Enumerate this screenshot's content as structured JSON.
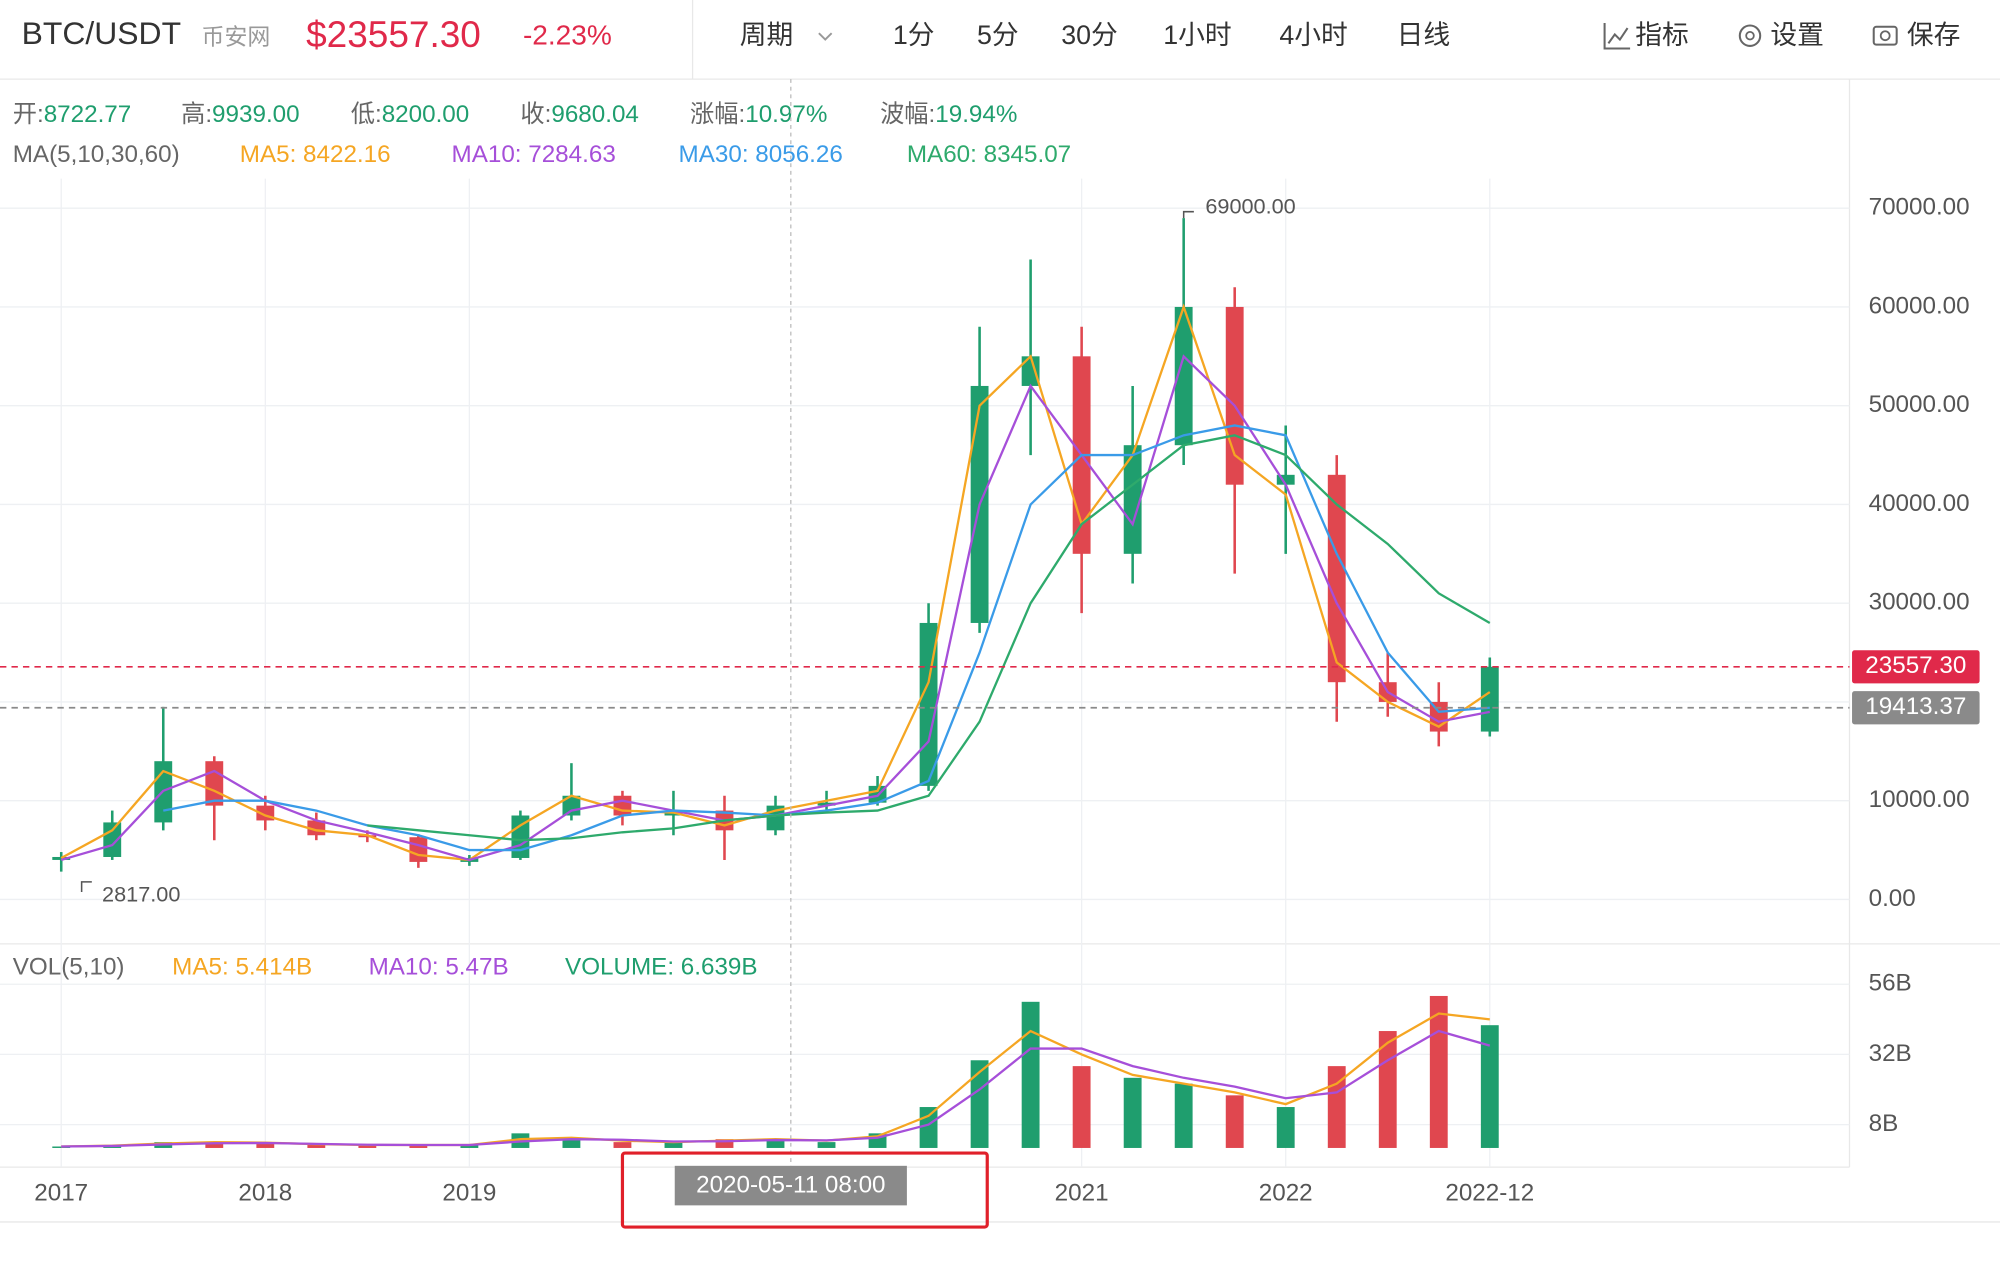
{
  "header": {
    "pair": "BTC/USDT",
    "source": "币安网",
    "price": "$23557.30",
    "change": "-2.23%",
    "period": "周期",
    "intervals": [
      "1分",
      "5分",
      "30分",
      "1小时",
      "4小时",
      "日线"
    ],
    "tools": [
      "指标",
      "设置",
      "保存"
    ]
  },
  "info": [
    {
      "label": "开:",
      "value": "8722.77"
    },
    {
      "label": "高:",
      "value": "9939.00"
    },
    {
      "label": "低:",
      "value": "8200.00"
    },
    {
      "label": "收:",
      "value": "9680.04"
    },
    {
      "label": "涨幅:",
      "value": "10.97%"
    },
    {
      "label": "波幅:",
      "value": "19.94%"
    }
  ],
  "crosshair_label": "2020-05-11 08:00",
  "chart_data": [
    {
      "type": "candlestick",
      "indicator_label": "MA(5,10,30,60)",
      "up_color": "#1f9e6e",
      "down_color": "#e0474f",
      "categories": [
        null,
        null,
        null,
        null,
        null,
        null,
        null,
        null,
        null,
        null,
        null,
        null,
        null,
        null,
        null,
        null,
        null,
        null,
        null,
        null,
        null,
        null,
        null,
        null,
        null,
        null,
        null,
        null,
        null
      ],
      "open": [
        4000,
        4300,
        7800,
        14000,
        9500,
        8000,
        6500,
        6300,
        3800,
        4200,
        8500,
        10500,
        8500,
        9000,
        7000,
        9500,
        9800,
        11500,
        28000,
        52000,
        55000,
        35000,
        46000,
        60000,
        42000,
        43000,
        22000,
        20000,
        17000
      ],
      "high": [
        4800,
        9000,
        19500,
        14500,
        10500,
        8800,
        7000,
        6600,
        4500,
        9000,
        13800,
        11000,
        11000,
        10500,
        10500,
        11000,
        12500,
        30000,
        58000,
        64800,
        58000,
        52000,
        69000,
        62000,
        48000,
        45000,
        25000,
        22000,
        24500
      ],
      "low": [
        2817,
        4000,
        7000,
        6000,
        7000,
        6000,
        5800,
        3200,
        3400,
        4000,
        8000,
        7500,
        6500,
        4000,
        6500,
        8800,
        9500,
        11000,
        27000,
        45000,
        29000,
        32000,
        44000,
        33000,
        35000,
        18000,
        18500,
        15500,
        16500
      ],
      "close": [
        4300,
        7800,
        14000,
        9500,
        8000,
        6500,
        6300,
        3800,
        4200,
        8500,
        10500,
        8500,
        9000,
        7000,
        9500,
        9800,
        11500,
        28000,
        52000,
        55000,
        35000,
        46000,
        60000,
        42000,
        43000,
        22000,
        20000,
        17000,
        23557.3
      ],
      "series": [
        {
          "name": "MA5: 8422.16",
          "color": "#f5a623",
          "values": [
            4200,
            7000,
            13000,
            11000,
            8500,
            7000,
            6500,
            4500,
            4000,
            7500,
            10500,
            9000,
            8800,
            7500,
            9000,
            10000,
            11000,
            22000,
            50000,
            55000,
            38000,
            45000,
            60000,
            45000,
            41000,
            24000,
            20000,
            17500,
            21000
          ]
        },
        {
          "name": "MA10: 7284.63",
          "color": "#a64fd9",
          "values": [
            4000,
            5500,
            11000,
            13000,
            10000,
            8000,
            6800,
            5500,
            4000,
            5500,
            9000,
            10000,
            9000,
            8000,
            8500,
            9500,
            10500,
            16000,
            40000,
            52000,
            45000,
            38000,
            55000,
            50000,
            42000,
            30000,
            21000,
            18000,
            19000
          ]
        },
        {
          "name": "MA30: 8056.26",
          "color": "#3a9be8",
          "values": [
            null,
            null,
            9000,
            10000,
            10000,
            9000,
            7500,
            6500,
            5000,
            5000,
            6500,
            8500,
            9000,
            8800,
            8500,
            9000,
            9800,
            12000,
            25000,
            40000,
            45000,
            45000,
            47000,
            48000,
            47000,
            35000,
            25000,
            19000,
            19413.37
          ]
        },
        {
          "name": "MA60: 8345.07",
          "color": "#2eaa6c",
          "values": [
            null,
            null,
            null,
            null,
            null,
            null,
            7500,
            7000,
            6500,
            6000,
            6200,
            6800,
            7200,
            8000,
            8500,
            8800,
            9000,
            10500,
            18000,
            30000,
            38000,
            42000,
            46000,
            47000,
            45000,
            40000,
            36000,
            31000,
            28000
          ]
        }
      ],
      "price_tags": [
        {
          "value": 23557.3,
          "label": "23557.30",
          "color": "#e0294a"
        },
        {
          "value": 19413.37,
          "label": "19413.37",
          "color": "#8a8a8a"
        }
      ],
      "annotations": [
        {
          "index": 22,
          "value": 69000,
          "label": "69000.00"
        },
        {
          "index": 0,
          "value": 2817,
          "label": "2817.00"
        }
      ],
      "ylim": [
        -4500,
        73000
      ],
      "yticks": [
        {
          "value": 0,
          "label": "0.00"
        },
        {
          "value": 10000,
          "label": "10000.00"
        },
        {
          "value": 20000,
          "label": "20000.00"
        },
        {
          "value": 30000,
          "label": "30000.00"
        },
        {
          "value": 40000,
          "label": "40000.00"
        },
        {
          "value": 50000,
          "label": "50000.00"
        },
        {
          "value": 60000,
          "label": "60000.00"
        },
        {
          "value": 70000,
          "label": "70000.00"
        }
      ],
      "grid": true
    },
    {
      "type": "bar",
      "indicator_label": "VOL(5,10)",
      "volume_label": "VOLUME: 6.639B",
      "categories": [
        "2017",
        null,
        null,
        null,
        "2018",
        null,
        null,
        null,
        "2019",
        null,
        null,
        null,
        null,
        null,
        null,
        null,
        null,
        null,
        null,
        null,
        "2021",
        null,
        null,
        null,
        "2022",
        null,
        null,
        null,
        "2022-12"
      ],
      "values": [
        0.5,
        1,
        2,
        2,
        1.5,
        1,
        1,
        1,
        1,
        5,
        3,
        2,
        2,
        3,
        3,
        2,
        5,
        14,
        30,
        50,
        28,
        24,
        22,
        18,
        14,
        28,
        40,
        52,
        42
      ],
      "series": [
        {
          "name": "MA5: 5.414B",
          "color": "#f5a623",
          "values": [
            0.5,
            0.8,
            1.5,
            2,
            1.8,
            1.3,
            1,
            1,
            1,
            3,
            3.5,
            2.5,
            2,
            2.5,
            3,
            2.5,
            4,
            11,
            26,
            40,
            32,
            25,
            22,
            19,
            15,
            22,
            36,
            46,
            44
          ]
        },
        {
          "name": "MA10: 5.47B",
          "color": "#a64fd9",
          "values": [
            0.5,
            0.7,
            1.2,
            1.6,
            1.7,
            1.4,
            1.1,
            1,
            1,
            2.2,
            3,
            2.8,
            2.2,
            2.3,
            2.7,
            2.6,
            3.5,
            8,
            20,
            34,
            34,
            28,
            24,
            21,
            17,
            19,
            30,
            40,
            35
          ]
        }
      ],
      "ylim": [
        0,
        60
      ],
      "yticks": [
        {
          "value": 8,
          "label": "8B"
        },
        {
          "value": 32,
          "label": "32B"
        },
        {
          "value": 56,
          "label": "56B"
        }
      ],
      "grid": true
    }
  ]
}
